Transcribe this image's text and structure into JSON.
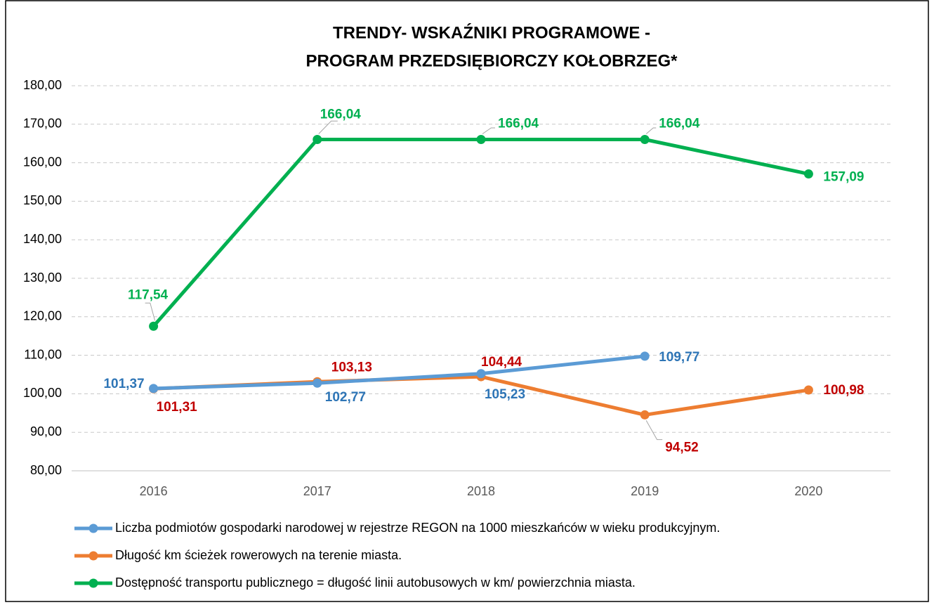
{
  "chart_data": {
    "type": "line",
    "title": [
      "TRENDY- WSKAŹNIKI PROGRAMOWE -",
      "PROGRAM PRZEDSIĘBIORCZY KOŁOBRZEG*"
    ],
    "categories": [
      "2016",
      "2017",
      "2018",
      "2019",
      "2020"
    ],
    "series": [
      {
        "name": "Liczba podmiotów gospodarki narodowej w rejestrze REGON na 1000 mieszkańców w wieku produkcyjnym.",
        "color": "#5b9bd5",
        "label_color": "#2e75b6",
        "values": [
          101.37,
          102.77,
          105.23,
          109.77,
          null
        ],
        "value_labels": [
          "101,37",
          "102,77",
          "105,23",
          "109,77",
          null
        ]
      },
      {
        "name": "Długość km ścieżek rowerowych na terenie miasta.",
        "color": "#ed7d31",
        "label_color": "#c00000",
        "values": [
          101.31,
          103.13,
          104.44,
          94.52,
          100.98
        ],
        "value_labels": [
          "101,31",
          "103,13",
          "104,44",
          "94,52",
          "100,98"
        ]
      },
      {
        "name": "Dostępność transportu publicznego = długość linii autobusowych w km/ powierzchnia miasta.",
        "color": "#00b050",
        "label_color": "#00b050",
        "values": [
          117.54,
          166.04,
          166.04,
          166.04,
          157.09
        ],
        "value_labels": [
          "117,54",
          "166,04",
          "166,04",
          "166,04",
          "157,09"
        ]
      }
    ],
    "ylim": [
      80,
      180
    ],
    "yticks": [
      {
        "value": 80,
        "label": "80,00"
      },
      {
        "value": 90,
        "label": "90,00"
      },
      {
        "value": 100,
        "label": "100,00"
      },
      {
        "value": 110,
        "label": "110,00"
      },
      {
        "value": 120,
        "label": "120,00"
      },
      {
        "value": 130,
        "label": "130,00"
      },
      {
        "value": 140,
        "label": "140,00"
      },
      {
        "value": 150,
        "label": "150,00"
      },
      {
        "value": 160,
        "label": "160,00"
      },
      {
        "value": 170,
        "label": "170,00"
      },
      {
        "value": 180,
        "label": "180,00"
      }
    ],
    "grid": true,
    "legend": "bottom"
  }
}
